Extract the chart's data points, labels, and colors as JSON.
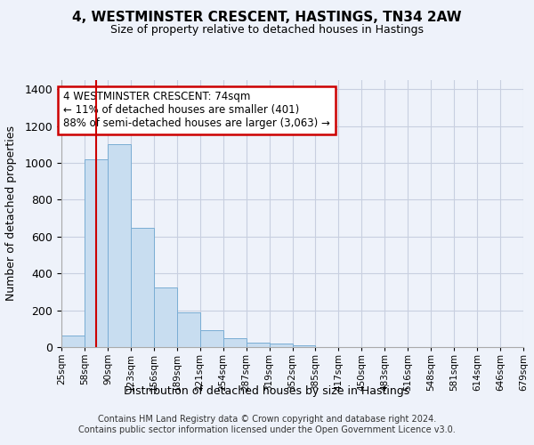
{
  "title": "4, WESTMINSTER CRESCENT, HASTINGS, TN34 2AW",
  "subtitle": "Size of property relative to detached houses in Hastings",
  "xlabel": "Distribution of detached houses by size in Hastings",
  "ylabel": "Number of detached properties",
  "bar_labels": [
    "25sqm",
    "58sqm",
    "90sqm",
    "123sqm",
    "156sqm",
    "189sqm",
    "221sqm",
    "254sqm",
    "287sqm",
    "319sqm",
    "352sqm",
    "385sqm",
    "417sqm",
    "450sqm",
    "483sqm",
    "516sqm",
    "548sqm",
    "581sqm",
    "614sqm",
    "646sqm",
    "679sqm"
  ],
  "bar_values": [
    65,
    1020,
    1100,
    650,
    325,
    190,
    90,
    48,
    25,
    18,
    12,
    0,
    0,
    0,
    0,
    0,
    0,
    0,
    0,
    0
  ],
  "bar_color": "#c8ddf0",
  "bar_edge_color": "#7aadd4",
  "red_line_x": 1.485,
  "annotation_text": "4 WESTMINSTER CRESCENT: 74sqm\n← 11% of detached houses are smaller (401)\n88% of semi-detached houses are larger (3,063) →",
  "annotation_box_color": "#ffffff",
  "annotation_box_edge": "#cc0000",
  "ylim": [
    0,
    1450
  ],
  "yticks": [
    0,
    200,
    400,
    600,
    800,
    1000,
    1200,
    1400
  ],
  "footer": "Contains HM Land Registry data © Crown copyright and database right 2024.\nContains public sector information licensed under the Open Government Licence v3.0.",
  "bg_color": "#eef2fa",
  "grid_color": "#c8cfe0"
}
